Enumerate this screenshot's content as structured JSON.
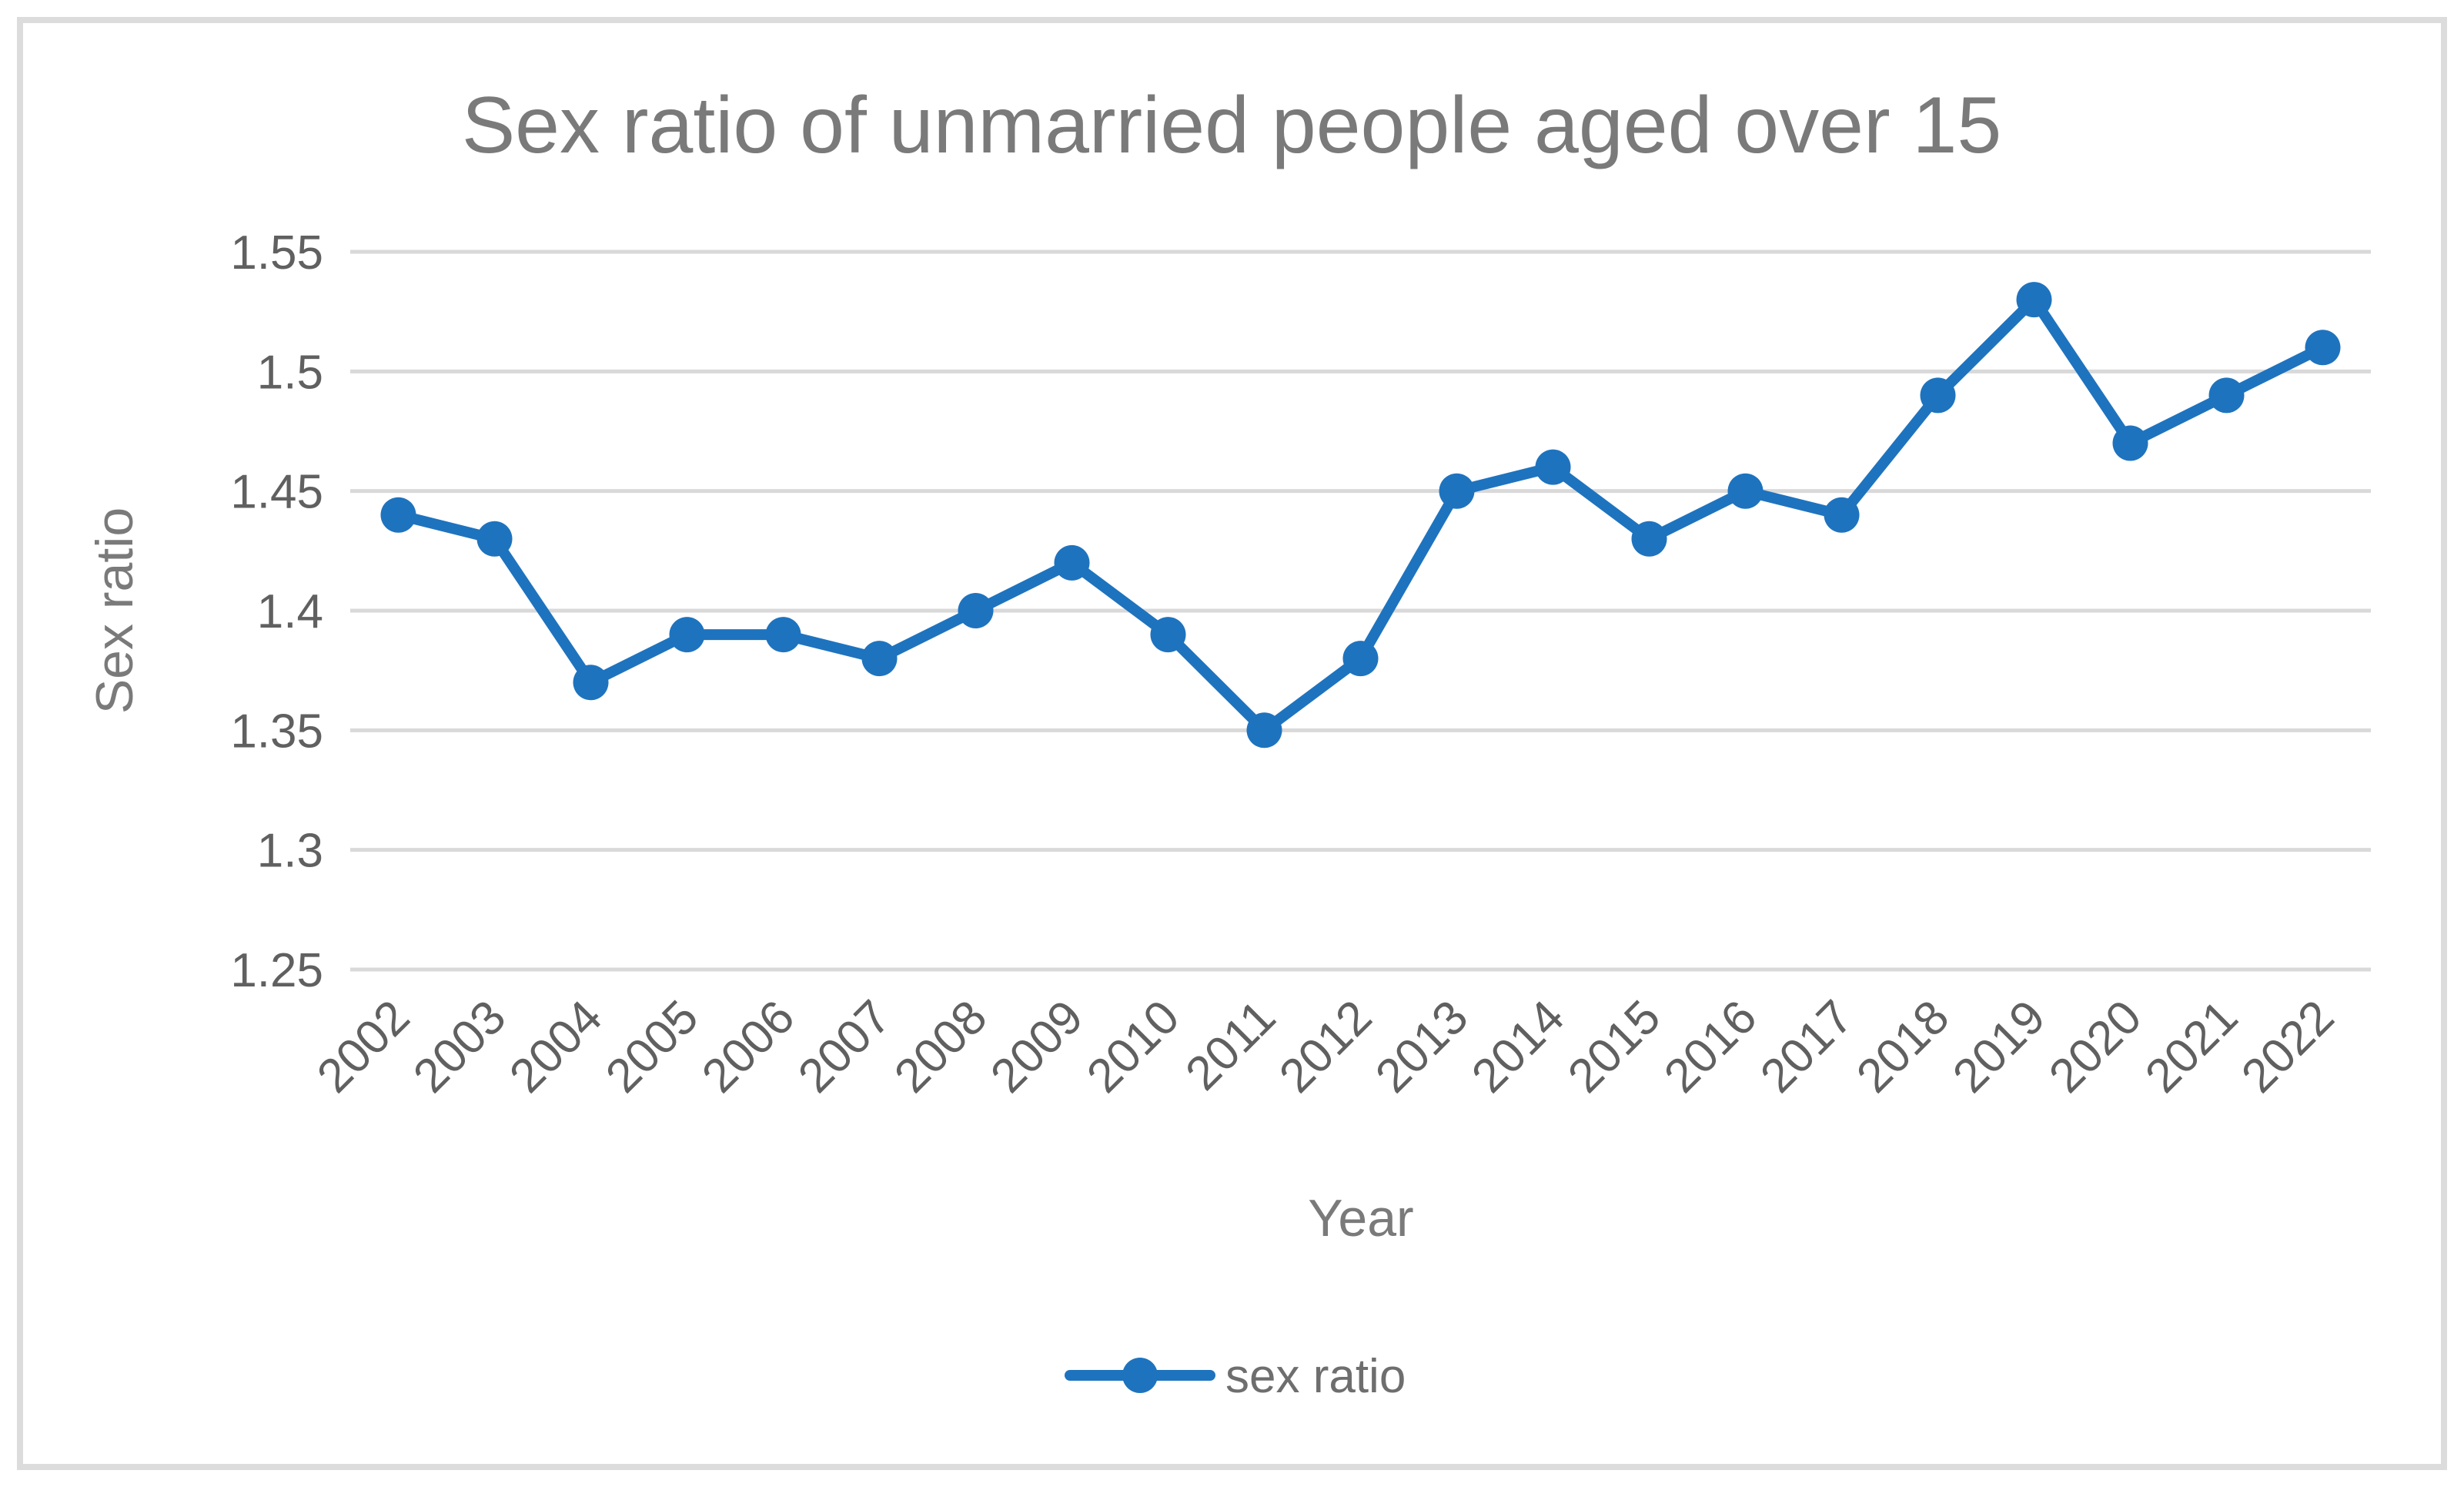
{
  "figure": {
    "background": "#ffffff",
    "border_color": "#dcdcdc",
    "border_width": 8,
    "border_inset": 22
  },
  "chart_data": {
    "type": "line",
    "title": "Sex ratio of unmarried people aged over 15",
    "xlabel": "Year",
    "ylabel": "Sex ratio",
    "categories": [
      "2002",
      "2003",
      "2004",
      "2005",
      "2006",
      "2007",
      "2008",
      "2009",
      "2010",
      "2011",
      "2012",
      "2013",
      "2014",
      "2015",
      "2016",
      "2017",
      "2018",
      "2019",
      "2020",
      "2021",
      "2022"
    ],
    "series": [
      {
        "name": "sex ratio",
        "color": "#1e73be",
        "marker": "circle",
        "values": [
          1.44,
          1.43,
          1.37,
          1.39,
          1.39,
          1.38,
          1.4,
          1.42,
          1.39,
          1.35,
          1.38,
          1.45,
          1.46,
          1.43,
          1.45,
          1.44,
          1.49,
          1.53,
          1.47,
          1.49,
          1.51
        ]
      }
    ],
    "ylim": [
      1.25,
      1.55
    ],
    "y_ticks": [
      "1.55",
      "1.5",
      "1.45",
      "1.4",
      "1.35",
      "1.3",
      "1.25"
    ],
    "y_tick_values": [
      1.55,
      1.5,
      1.45,
      1.4,
      1.35,
      1.3,
      1.25
    ],
    "grid": "horizontal",
    "gridline_color": "#d9d9d9",
    "title_color": "#7a7a7a",
    "axis_title_color": "#7a7a7a",
    "tick_label_color": "#606060",
    "legend_label_color": "#6e6e6e",
    "legend_position": "bottom",
    "legend": [
      "sex ratio"
    ]
  }
}
